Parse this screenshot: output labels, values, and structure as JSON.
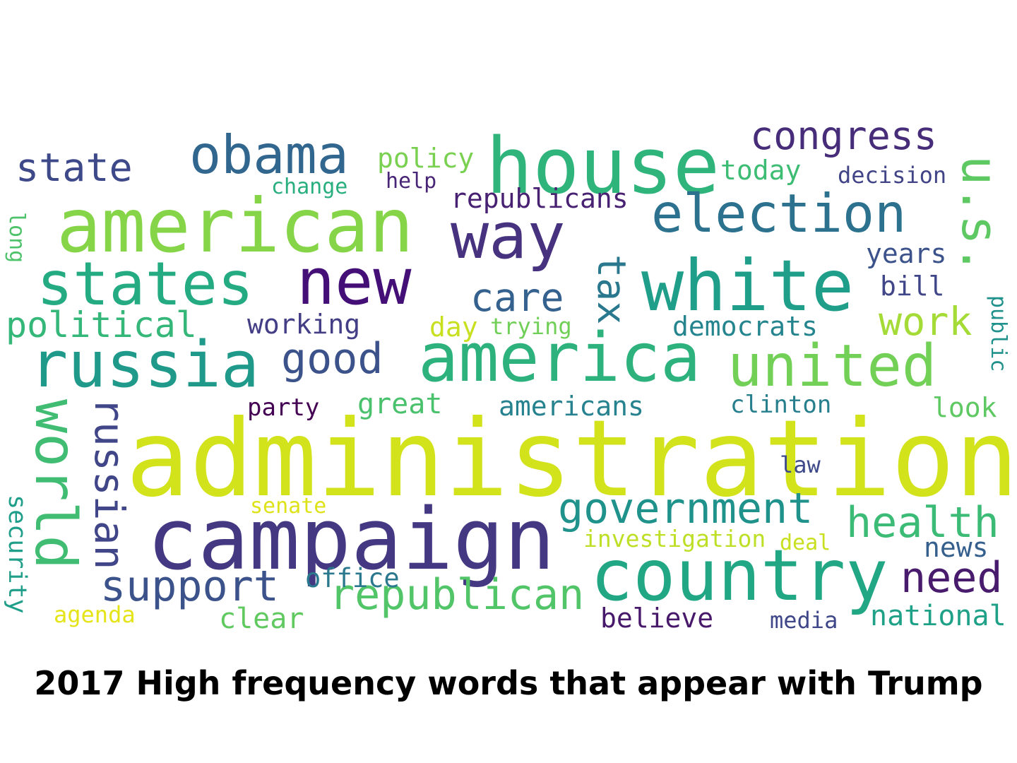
{
  "caption": "2017 High frequency words that appear with Trump",
  "words": [
    {
      "text": "administration",
      "color": "#d2e21b"
    },
    {
      "text": "campaign",
      "color": "#453882"
    },
    {
      "text": "house",
      "color": "#2fb47c"
    },
    {
      "text": "american",
      "color": "#86d549"
    },
    {
      "text": "white",
      "color": "#1f9e89"
    },
    {
      "text": "america",
      "color": "#2db27d"
    },
    {
      "text": "country",
      "color": "#22a785"
    },
    {
      "text": "new",
      "color": "#440f76"
    },
    {
      "text": "states",
      "color": "#25ab82"
    },
    {
      "text": "russia",
      "color": "#1f9a8a"
    },
    {
      "text": "united",
      "color": "#73d056"
    },
    {
      "text": "election",
      "color": "#2c728e"
    },
    {
      "text": "way",
      "color": "#46327e"
    },
    {
      "text": "obama",
      "color": "#31668e"
    },
    {
      "text": "world",
      "color": "#40bd72"
    },
    {
      "text": "republican",
      "color": "#52c569"
    },
    {
      "text": "government",
      "color": "#1f938b"
    },
    {
      "text": "support",
      "color": "#3b528b"
    },
    {
      "text": "health",
      "color": "#3bbb75"
    },
    {
      "text": "congress",
      "color": "#472c7a"
    },
    {
      "text": "u.s.",
      "color": "#5ec962"
    },
    {
      "text": "state",
      "color": "#3e4989"
    },
    {
      "text": "russian",
      "color": "#404688"
    },
    {
      "text": "need",
      "color": "#481b6d"
    },
    {
      "text": "good",
      "color": "#3b528b"
    },
    {
      "text": "care",
      "color": "#34618d"
    },
    {
      "text": "political",
      "color": "#35b779"
    },
    {
      "text": "work",
      "color": "#a5db36"
    },
    {
      "text": "tax",
      "color": "#2a788e"
    },
    {
      "text": "republicans",
      "color": "#482173"
    },
    {
      "text": "policy",
      "color": "#7ad151"
    },
    {
      "text": "today",
      "color": "#3dbc74"
    },
    {
      "text": "decision",
      "color": "#414487"
    },
    {
      "text": "years",
      "color": "#3b528b"
    },
    {
      "text": "bill",
      "color": "#404688"
    },
    {
      "text": "democrats",
      "color": "#25858e"
    },
    {
      "text": "working",
      "color": "#433e85"
    },
    {
      "text": "day",
      "color": "#c8e020"
    },
    {
      "text": "trying",
      "color": "#70cf57"
    },
    {
      "text": "americans",
      "color": "#26828e"
    },
    {
      "text": "great",
      "color": "#4ac16d"
    },
    {
      "text": "party",
      "color": "#440154"
    },
    {
      "text": "clinton",
      "color": "#277f8e"
    },
    {
      "text": "look",
      "color": "#5ec962"
    },
    {
      "text": "public",
      "color": "#21918c"
    },
    {
      "text": "law",
      "color": "#3e4a89"
    },
    {
      "text": "news",
      "color": "#355f8d"
    },
    {
      "text": "senate",
      "color": "#dde318"
    },
    {
      "text": "investigation",
      "color": "#bddf26"
    },
    {
      "text": "deal",
      "color": "#c8e020"
    },
    {
      "text": "office",
      "color": "#2a788e"
    },
    {
      "text": "believe",
      "color": "#48186a"
    },
    {
      "text": "national",
      "color": "#1fa188"
    },
    {
      "text": "media",
      "color": "#3f4788"
    },
    {
      "text": "clear",
      "color": "#60ca60"
    },
    {
      "text": "agenda",
      "color": "#e5e419"
    },
    {
      "text": "security",
      "color": "#1f9e89"
    },
    {
      "text": "change",
      "color": "#29af7f"
    },
    {
      "text": "help",
      "color": "#482576"
    },
    {
      "text": "long",
      "color": "#4ec36b"
    }
  ]
}
